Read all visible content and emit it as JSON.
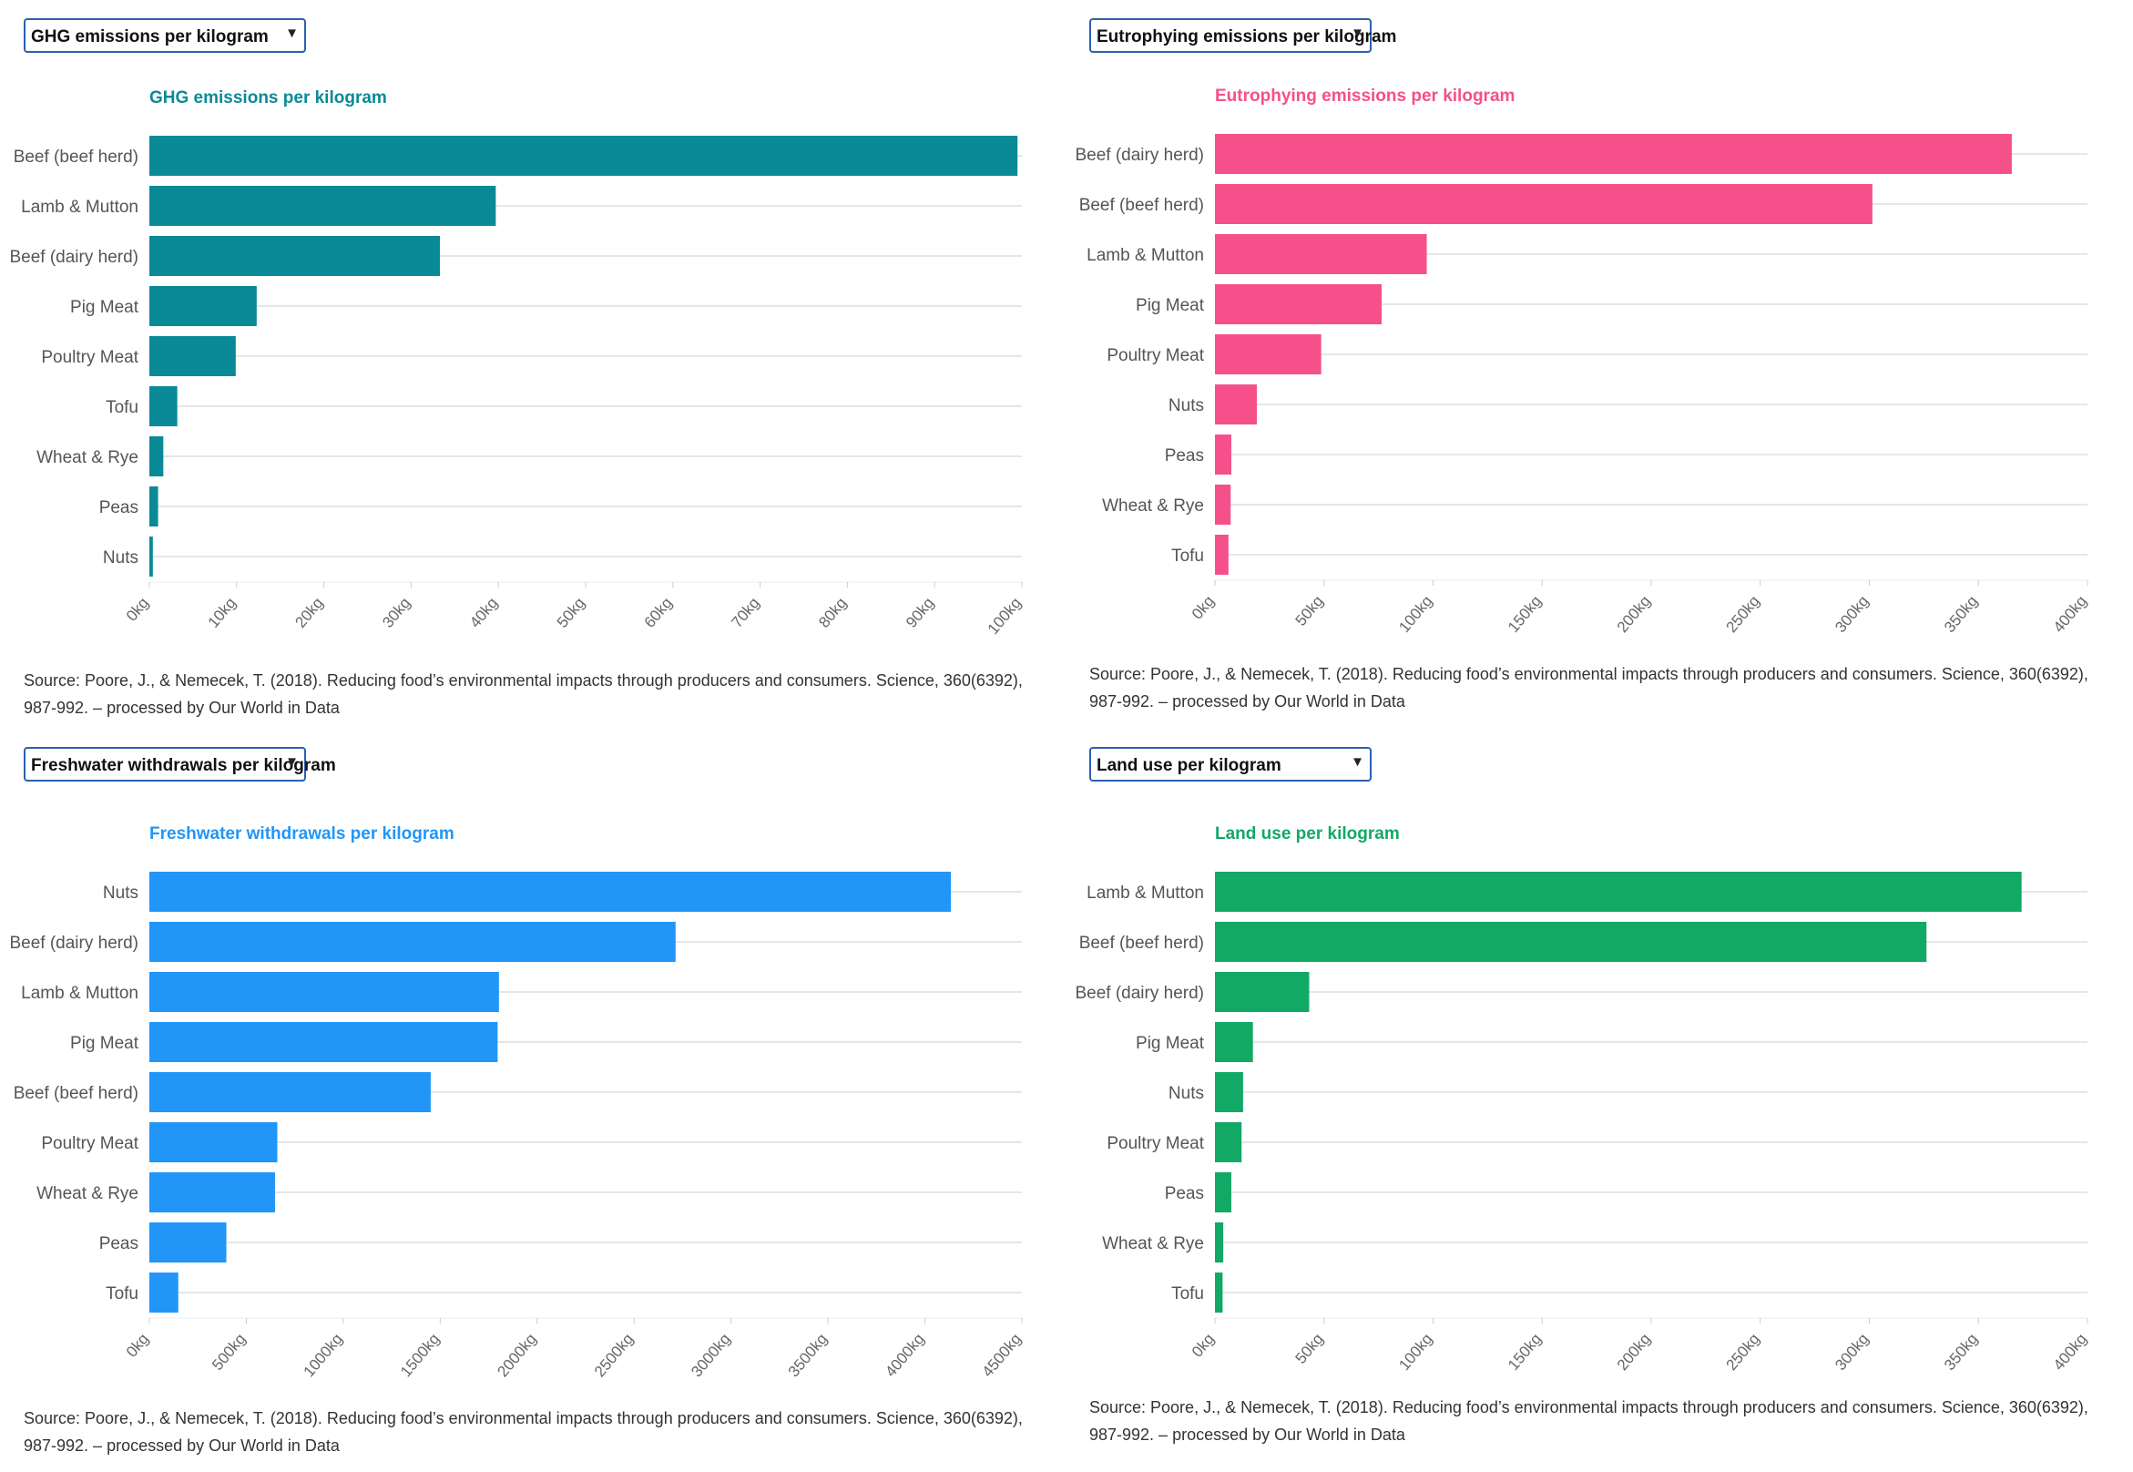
{
  "panels": [
    {
      "dropdown": {
        "selected": "GHG emissions per kilogram"
      },
      "source": "Source: Poore, J., & Nemecek, T. (2018). Reducing food’s environmental impacts through producers and consumers. Science, 360(6392), 987-992. – processed by Our World in Data"
    },
    {
      "dropdown": {
        "selected": "Eutrophying emissions per kilogram"
      },
      "source": "Source: Poore, J., & Nemecek, T. (2018). Reducing food’s environmental impacts through producers and consumers. Science, 360(6392), 987-992. – processed by Our World in Data"
    },
    {
      "dropdown": {
        "selected": "Freshwater withdrawals per kilogram"
      },
      "source": "Source: Poore, J., & Nemecek, T. (2018). Reducing food’s environmental impacts through producers and consumers. Science, 360(6392), 987-992. – processed by Our World in Data"
    },
    {
      "dropdown": {
        "selected": "Land use per kilogram"
      },
      "source": "Source: Poore, J., & Nemecek, T. (2018). Reducing food’s environmental impacts through producers and consumers. Science, 360(6392), 987-992. – processed by Our World in Data"
    }
  ],
  "chart_data": [
    {
      "type": "bar",
      "orientation": "horizontal",
      "title": "GHG emissions per kilogram",
      "color": "#0a8a96",
      "categories": [
        "Beef (beef herd)",
        "Lamb & Mutton",
        "Beef (dairy herd)",
        "Pig Meat",
        "Poultry Meat",
        "Tofu",
        "Wheat & Rye",
        "Peas",
        "Nuts"
      ],
      "values": [
        99.5,
        39.7,
        33.3,
        12.3,
        9.9,
        3.2,
        1.6,
        1.0,
        0.4
      ],
      "xlim": [
        0,
        100
      ],
      "ticks": [
        "0kg",
        "10kg",
        "20kg",
        "30kg",
        "40kg",
        "50kg",
        "60kg",
        "70kg",
        "80kg",
        "90kg",
        "100kg"
      ],
      "grid": true
    },
    {
      "type": "bar",
      "orientation": "horizontal",
      "title": "Eutrophying emissions per kilogram",
      "color": "#f5508a",
      "categories": [
        "Beef (dairy herd)",
        "Beef (beef herd)",
        "Lamb & Mutton",
        "Pig Meat",
        "Poultry Meat",
        "Nuts",
        "Peas",
        "Wheat & Rye",
        "Tofu"
      ],
      "values": [
        365.3,
        301.4,
        97.1,
        76.4,
        48.7,
        19.2,
        7.5,
        7.2,
        6.2
      ],
      "xlim": [
        0,
        400
      ],
      "ticks": [
        "0kg",
        "50kg",
        "100kg",
        "150kg",
        "200kg",
        "250kg",
        "300kg",
        "350kg",
        "400kg"
      ],
      "grid": true
    },
    {
      "type": "bar",
      "orientation": "horizontal",
      "title": "Freshwater withdrawals per kilogram",
      "color": "#2196f8",
      "categories": [
        "Nuts",
        "Beef (dairy herd)",
        "Lamb & Mutton",
        "Pig Meat",
        "Beef (beef herd)",
        "Poultry Meat",
        "Wheat & Rye",
        "Peas",
        "Tofu"
      ],
      "values": [
        4134,
        2714,
        1803,
        1796,
        1451,
        660,
        648,
        397,
        149
      ],
      "xlim": [
        0,
        4500
      ],
      "ticks": [
        "0kg",
        "500kg",
        "1000kg",
        "1500kg",
        "2000kg",
        "2500kg",
        "3000kg",
        "3500kg",
        "4000kg",
        "4500kg"
      ],
      "grid": true
    },
    {
      "type": "bar",
      "orientation": "horizontal",
      "title": "Land use per kilogram",
      "color": "#12a866",
      "categories": [
        "Lamb & Mutton",
        "Beef (beef herd)",
        "Beef (dairy herd)",
        "Pig Meat",
        "Nuts",
        "Poultry Meat",
        "Peas",
        "Wheat & Rye",
        "Tofu"
      ],
      "values": [
        369.8,
        326.2,
        43.2,
        17.4,
        12.9,
        12.2,
        7.5,
        3.8,
        3.5
      ],
      "xlim": [
        0,
        400
      ],
      "ticks": [
        "0kg",
        "50kg",
        "100kg",
        "150kg",
        "200kg",
        "250kg",
        "300kg",
        "350kg",
        "400kg"
      ],
      "grid": true
    }
  ]
}
